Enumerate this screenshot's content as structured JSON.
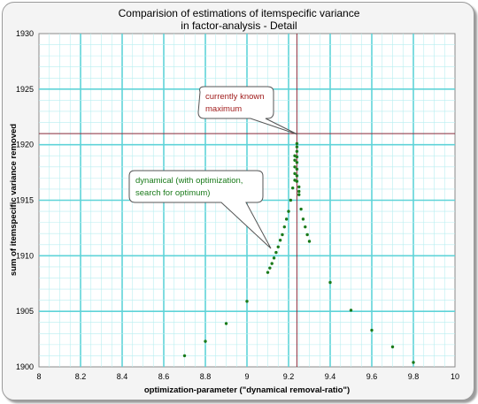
{
  "chart_data": {
    "type": "scatter",
    "title": "Comparision of estimations of itemspecific variance",
    "subtitle": "in factor-analysis - Detail",
    "xlabel": "optimization-parameter (\"dynamical removal-ratio\")",
    "ylabel": "sum of itemspecific variance removed",
    "xlim": [
      8,
      10
    ],
    "ylim": [
      1900,
      1930
    ],
    "xticks": [
      "8",
      "8.2",
      "8.4",
      "8.6",
      "8.8",
      "9",
      "9.2",
      "9.4",
      "9.6",
      "9.8",
      "10"
    ],
    "yticks": [
      "1900",
      "1905",
      "1910",
      "1915",
      "1920",
      "1925",
      "1930"
    ],
    "grid": true,
    "reference_lines": {
      "x": 9.24,
      "y": 1921
    },
    "colors": {
      "points": "#1a7a1a",
      "grid_major": "#5fd3d8",
      "grid_minor": "#b8eef0",
      "reference": "#8b2a3a",
      "note_known": "#a01c1c",
      "note_dynamical": "#1a7a1a"
    },
    "series": [
      {
        "values": [
          [
            8.7,
            1901.0
          ],
          [
            8.8,
            1902.3
          ],
          [
            8.9,
            1903.9
          ],
          [
            9.0,
            1905.9
          ],
          [
            9.1,
            1908.5
          ],
          [
            9.11,
            1908.9
          ],
          [
            9.12,
            1909.3
          ],
          [
            9.13,
            1909.8
          ],
          [
            9.14,
            1910.3
          ],
          [
            9.15,
            1910.8
          ],
          [
            9.16,
            1911.4
          ],
          [
            9.17,
            1911.9
          ],
          [
            9.18,
            1912.6
          ],
          [
            9.19,
            1913.3
          ],
          [
            9.2,
            1914.0
          ],
          [
            9.21,
            1915.0
          ],
          [
            9.22,
            1916.1
          ],
          [
            9.23,
            1916.8
          ],
          [
            9.23,
            1917.4
          ],
          [
            9.23,
            1918.0
          ],
          [
            9.23,
            1918.6
          ],
          [
            9.23,
            1919.0
          ],
          [
            9.24,
            1920.1
          ],
          [
            9.24,
            1919.8
          ],
          [
            9.24,
            1919.4
          ],
          [
            9.24,
            1918.9
          ],
          [
            9.24,
            1918.4
          ],
          [
            9.24,
            1917.8
          ],
          [
            9.24,
            1917.2
          ],
          [
            9.24,
            1916.7
          ],
          [
            9.25,
            1916.2
          ],
          [
            9.25,
            1915.8
          ],
          [
            9.25,
            1915.5
          ],
          [
            9.26,
            1914.2
          ],
          [
            9.27,
            1913.3
          ],
          [
            9.28,
            1912.6
          ],
          [
            9.29,
            1911.9
          ],
          [
            9.3,
            1911.3
          ],
          [
            9.4,
            1907.6
          ],
          [
            9.5,
            1905.1
          ],
          [
            9.6,
            1903.3
          ],
          [
            9.7,
            1901.8
          ],
          [
            9.8,
            1900.4
          ]
        ]
      }
    ],
    "annotations": [
      {
        "lines": [
          "currently known",
          "maximum"
        ],
        "color": "#a01c1c",
        "target": [
          9.24,
          1921
        ]
      },
      {
        "lines": [
          "dynamical (with optimization,",
          "search for optimum)"
        ],
        "color": "#1a7a1a",
        "target": [
          9.12,
          1909
        ]
      }
    ]
  }
}
